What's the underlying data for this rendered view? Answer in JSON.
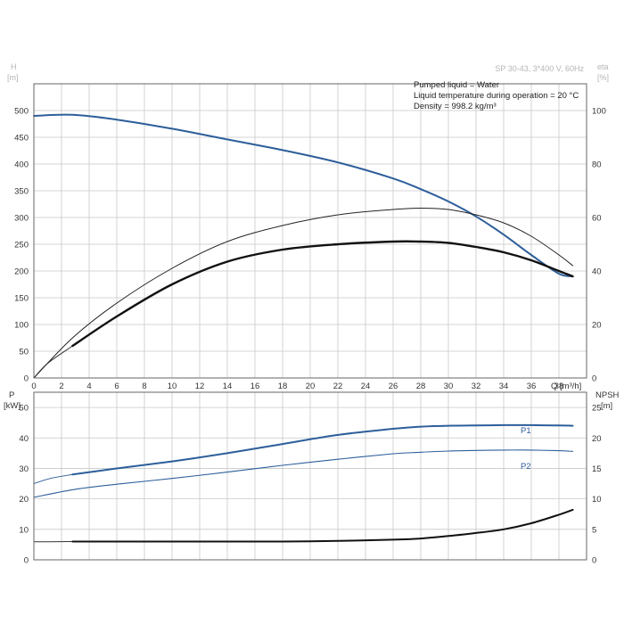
{
  "chart_data": [
    {
      "type": "line",
      "title": "",
      "header_label": "SP 30-43, 3*400 V, 60Hz",
      "info_lines": [
        "Pumped liquid = Water",
        "Liquid temperature during operation = 20 °C",
        "Density = 998.2 kg/m³"
      ],
      "xlabel": "Q [m³/h]",
      "xlim": [
        0,
        40
      ],
      "x_ticks": [
        0,
        2,
        4,
        6,
        8,
        10,
        12,
        14,
        16,
        18,
        20,
        22,
        24,
        26,
        28,
        30,
        32,
        34,
        36,
        38
      ],
      "ylabel_left_top": "H",
      "ylabel_left_unit": "[m]",
      "ylim_left": [
        0,
        550
      ],
      "y_ticks_left": [
        0,
        50,
        100,
        150,
        200,
        250,
        300,
        350,
        400,
        450,
        500
      ],
      "ylabel_right_top": "eta",
      "ylabel_right_unit": "[%]",
      "ylim_right": [
        0,
        110
      ],
      "y_ticks_right": [
        0,
        20,
        40,
        60,
        80,
        100
      ],
      "grid": true,
      "series": [
        {
          "axis": "left",
          "color": "#2d5e9a",
          "width": 2,
          "x": [
            0,
            2.8,
            6,
            10,
            14,
            18,
            22,
            26,
            28,
            30,
            32,
            34,
            36,
            38,
            39
          ],
          "y": [
            490,
            492,
            483,
            466,
            446,
            426,
            403,
            373,
            353,
            330,
            302,
            268,
            230,
            195,
            190
          ]
        },
        {
          "axis": "right",
          "color": "#222222",
          "width": 1,
          "x": [
            0,
            2.8,
            6,
            10,
            14,
            18,
            22,
            26,
            28,
            30,
            32,
            34,
            36,
            38,
            39
          ],
          "y": [
            0,
            15,
            28,
            41,
            51,
            57,
            61,
            63,
            63.5,
            63,
            61,
            58,
            53,
            46,
            42
          ]
        },
        {
          "axis": "right",
          "color": "#111111",
          "width": 2.4,
          "x": [
            2.8,
            6,
            10,
            14,
            18,
            22,
            26,
            28,
            30,
            32,
            34,
            36,
            38,
            39
          ],
          "y": [
            12,
            23,
            35,
            43.5,
            48,
            50,
            51,
            51,
            50.5,
            49,
            47,
            44,
            40,
            38
          ]
        }
      ],
      "series_lead": [
        {
          "axis": "right",
          "color": "#333333",
          "width": 1,
          "x": [
            0,
            1,
            2.8
          ],
          "y": [
            0,
            5.5,
            12
          ]
        }
      ]
    },
    {
      "type": "line",
      "title": "",
      "xlim": [
        0,
        40
      ],
      "ylabel_left_top": "P",
      "ylabel_left_unit": "[kW]",
      "ylim_left": [
        0,
        55
      ],
      "y_ticks_left": [
        0,
        10,
        20,
        30,
        40,
        50
      ],
      "ylabel_right_top": "NPSH",
      "ylabel_right_unit": "[m]",
      "ylim_right": [
        0,
        27.5
      ],
      "y_ticks_right": [
        0,
        5,
        10,
        15,
        20,
        25
      ],
      "grid": true,
      "series": [
        {
          "name": "P1",
          "axis": "left",
          "color": "#2d5e9a",
          "width": 2,
          "x": [
            2.8,
            6,
            10,
            14,
            18,
            22,
            26,
            28,
            30,
            32,
            34,
            36,
            38,
            39
          ],
          "y": [
            28,
            30,
            32.3,
            35,
            38,
            41,
            43,
            43.7,
            44,
            44.1,
            44.2,
            44.2,
            44.1,
            44
          ]
        },
        {
          "name": "P2",
          "axis": "left",
          "color": "#2d5e9a",
          "width": 1.1,
          "x": [
            0,
            2.8,
            6,
            10,
            14,
            18,
            22,
            26,
            28,
            30,
            32,
            34,
            36,
            38,
            39
          ],
          "y": [
            20.5,
            23,
            24.8,
            26.7,
            28.8,
            31,
            33,
            34.8,
            35.3,
            35.7,
            35.9,
            36,
            36,
            35.8,
            35.6
          ]
        },
        {
          "axis": "right",
          "color": "#111111",
          "width": 2,
          "x": [
            2.8,
            6,
            10,
            14,
            18,
            22,
            26,
            28,
            30,
            32,
            34,
            36,
            38,
            39
          ],
          "y": [
            3,
            3,
            3,
            3,
            3,
            3.1,
            3.3,
            3.5,
            3.9,
            4.4,
            5,
            6,
            7.4,
            8.2
          ]
        }
      ],
      "series_lead": [
        {
          "axis": "left",
          "color": "#2d5e9a",
          "width": 1,
          "x": [
            0,
            1.2,
            2.8
          ],
          "y": [
            25,
            26.7,
            28
          ]
        },
        {
          "axis": "right",
          "color": "#333333",
          "width": 1,
          "x": [
            0,
            1.2,
            2.8
          ],
          "y": [
            2.95,
            2.97,
            3
          ]
        }
      ],
      "series_labels": [
        "P1",
        "P2"
      ]
    }
  ]
}
